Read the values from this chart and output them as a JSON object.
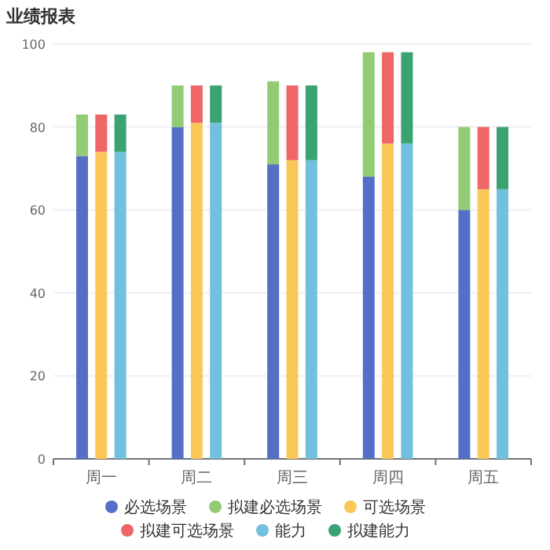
{
  "chart_data": [
    {
      "type": "bar",
      "title": "业绩报表",
      "stacked": true,
      "categories": [
        "周一",
        "周二",
        "周三",
        "周四",
        "周五"
      ],
      "series": [
        {
          "name": "必选场景",
          "color": "#5470c6",
          "values": [
            73,
            80,
            71,
            68,
            60
          ]
        },
        {
          "name": "拟建必选场景",
          "color": "#91cc75",
          "values": [
            10,
            10,
            20,
            30,
            20
          ]
        }
      ],
      "ylim": [
        0,
        100
      ],
      "yticks": [
        0,
        20,
        40,
        60,
        80,
        100
      ],
      "grid": "y",
      "legend": "bottom"
    },
    {
      "type": "bar",
      "stacked": true,
      "series": [
        {
          "name": "可选场景",
          "color": "#fac858",
          "values": [
            74,
            81,
            72,
            76,
            65
          ]
        },
        {
          "name": "拟建可选场景",
          "color": "#ee6666",
          "values": [
            9,
            9,
            18,
            22,
            15
          ]
        }
      ],
      "ylim": [
        0,
        100
      ],
      "tick_labels": false,
      "legend": "bottom"
    },
    {
      "type": "bar",
      "stacked": true,
      "series": [
        {
          "name": "能力",
          "color": "#73c0de",
          "values": [
            74,
            81,
            72,
            76,
            65
          ]
        },
        {
          "name": "拟建能力",
          "color": "#3ba272",
          "values": [
            9,
            9,
            18,
            22,
            15
          ]
        }
      ],
      "ylim": [
        0,
        100
      ],
      "tick_labels": false,
      "legend": "bottom"
    }
  ]
}
